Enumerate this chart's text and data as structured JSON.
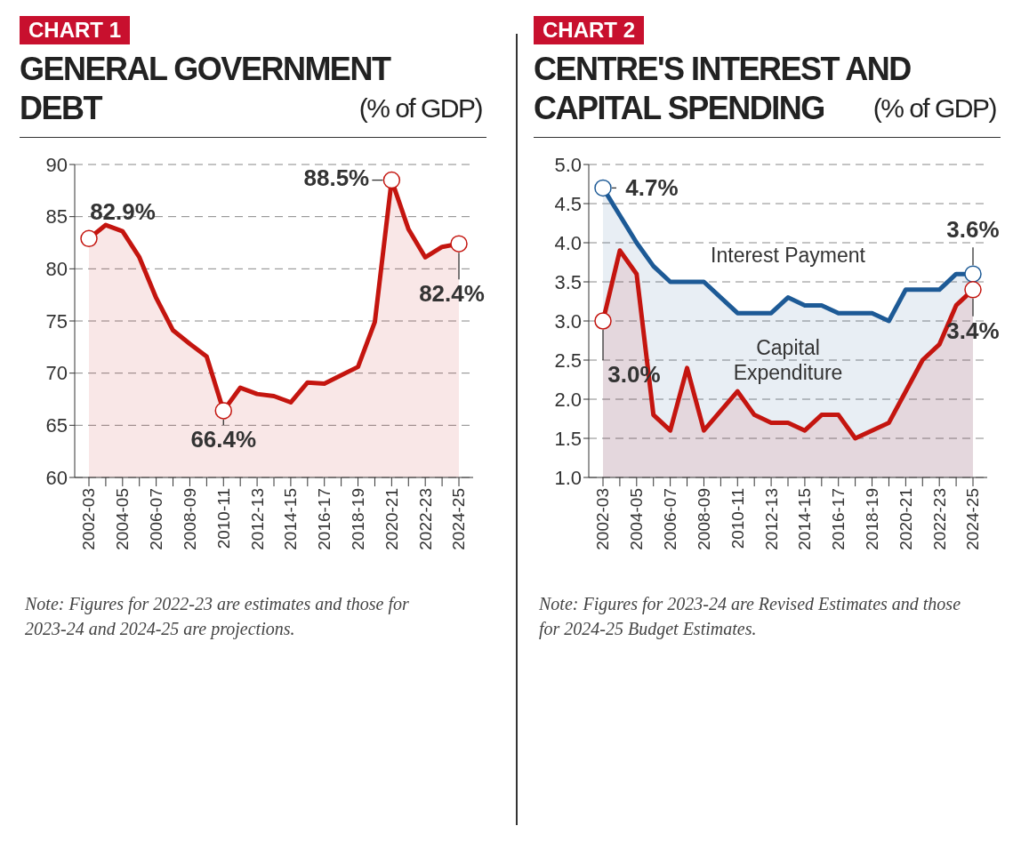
{
  "chart_data": [
    {
      "type": "area",
      "title": "GENERAL GOVERNMENT DEBT",
      "subtitle": "(% of GDP)",
      "categories": [
        "2002-03",
        null,
        "2004-05",
        null,
        "2006-07",
        null,
        "2008-09",
        null,
        "2010-11",
        null,
        "2012-13",
        null,
        "2014-15",
        null,
        "2016-17",
        null,
        "2018-19",
        null,
        "2020-21",
        null,
        "2022-23",
        null,
        "2024-25"
      ],
      "series": [
        {
          "color": "#c4150f",
          "values": [
            82.9,
            84.2,
            83.6,
            81.1,
            77.2,
            74.1,
            72.8,
            71.6,
            66.4,
            68.6,
            68.0,
            67.8,
            67.2,
            69.1,
            69.0,
            69.8,
            70.6,
            74.9,
            88.5,
            83.8,
            81.1,
            82.1,
            82.4
          ]
        }
      ],
      "ylim": [
        60,
        90
      ],
      "yticks": [
        60,
        65,
        70,
        75,
        80,
        85,
        90
      ],
      "grid": "y",
      "legend": false,
      "annotations": [
        "CHART 1",
        {
          "text": "82.9%",
          "x": "2002-03",
          "y": 82.9
        },
        {
          "text": "66.4%",
          "x": "2010-11",
          "y": 66.4
        },
        {
          "text": "88.5%",
          "x": "2020-21",
          "y": 88.5
        },
        {
          "text": "82.4%",
          "x": "2024-25",
          "y": 82.4
        },
        "Note: Figures for 2022-23 are estimates and those for 2023-24 and 2024-25 are projections."
      ]
    },
    {
      "type": "area",
      "title": "CENTRE'S INTEREST AND CAPITAL SPENDING",
      "subtitle": "(% of GDP)",
      "categories": [
        "2002-03",
        null,
        "2004-05",
        null,
        "2006-07",
        null,
        "2008-09",
        null,
        "2010-11",
        null,
        "2012-13",
        null,
        "2014-15",
        null,
        "2016-17",
        null,
        "2018-19",
        null,
        "2020-21",
        null,
        "2022-23",
        null,
        "2024-25"
      ],
      "series": [
        {
          "name": "Interest Payment",
          "color": "#1d5a96",
          "values": [
            4.7,
            4.35,
            4.0,
            3.7,
            3.5,
            3.5,
            3.5,
            3.3,
            3.1,
            3.1,
            3.1,
            3.3,
            3.2,
            3.2,
            3.1,
            3.1,
            3.1,
            3.0,
            3.4,
            3.4,
            3.4,
            3.6,
            3.6
          ]
        },
        {
          "name": "Capital Expenditure",
          "color": "#c4150f",
          "values": [
            3.0,
            3.9,
            3.6,
            1.8,
            1.6,
            2.4,
            1.6,
            1.85,
            2.1,
            1.8,
            1.7,
            1.7,
            1.6,
            1.8,
            1.8,
            1.5,
            1.6,
            1.7,
            2.1,
            2.5,
            2.7,
            3.2,
            3.4
          ]
        }
      ],
      "ylim": [
        1,
        5
      ],
      "yticks": [
        {
          "value": 1,
          "label": "1.0"
        },
        {
          "value": 1.5,
          "label": "1.5"
        },
        {
          "value": 2,
          "label": "2.0"
        },
        {
          "value": 2.5,
          "label": "2.5"
        },
        {
          "value": 3,
          "label": "3.0"
        },
        {
          "value": 3.5,
          "label": "3.5"
        },
        {
          "value": 4,
          "label": "4.0"
        },
        {
          "value": 4.5,
          "label": "4.5"
        },
        {
          "value": 5,
          "label": "5.0"
        }
      ],
      "grid": "y",
      "legend": false,
      "annotations": [
        "CHART 2",
        {
          "text": "4.7%",
          "x": "2002-03",
          "y": 4.7
        },
        {
          "text": "3.0%",
          "x": "2002-03",
          "y": 3.0
        },
        {
          "text": "3.6%",
          "x": "2024-25",
          "y": 3.6
        },
        {
          "text": "3.4%",
          "x": "2024-25",
          "y": 3.4
        },
        "Note: Figures for 2023-24 are Revised Estimates and those for 2024-25 Budget Estimates."
      ]
    }
  ]
}
